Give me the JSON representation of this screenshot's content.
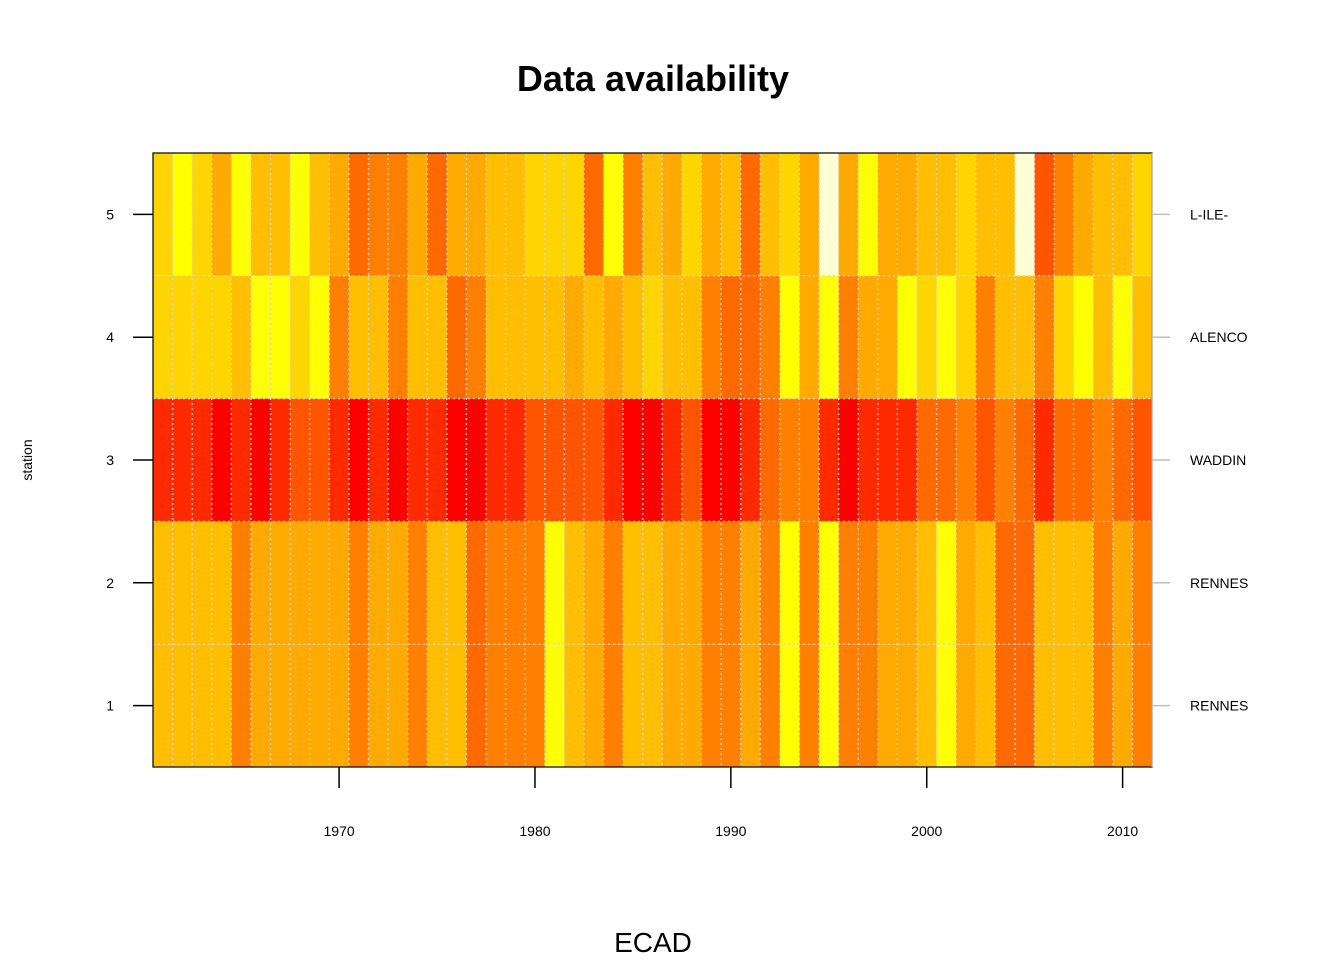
{
  "chart_data": {
    "type": "heatmap",
    "title": "Data availability",
    "xlabel": "ECAD",
    "ylabel": "station",
    "x_start_year": 1961,
    "x_end_year": 2011,
    "xlim": [
      1960.5,
      2011.5
    ],
    "ylim": [
      0.5,
      5.5
    ],
    "x_ticks": [
      1970,
      1980,
      1990,
      2000,
      2010
    ],
    "y_ticks": [
      1,
      2,
      3,
      4,
      5
    ],
    "station_labels": [
      "RENNES",
      "RENNES",
      "WADDIN",
      "ALENCO",
      "L-ILE-"
    ],
    "grid": true,
    "color_scale": "heat (red = low availability, yellow/white = high availability)",
    "palette": [
      "#FF0000",
      "#FF2A00",
      "#FF5500",
      "#FF6A00",
      "#FF8000",
      "#FFAA00",
      "#FFBF00",
      "#FFD500",
      "#FFFF00",
      "#FFFFD5"
    ],
    "rows": [
      {
        "station": 1,
        "levels": [
          6,
          6,
          6,
          6,
          4,
          5,
          5,
          5,
          5,
          5,
          4,
          5,
          5,
          4,
          6,
          6,
          3,
          4,
          4,
          4,
          8,
          6,
          5,
          4,
          6,
          6,
          5,
          5,
          4,
          4,
          5,
          4,
          8,
          4,
          8,
          4,
          4,
          5,
          5,
          6,
          8,
          5,
          6,
          3,
          3,
          6,
          6,
          6,
          4,
          5,
          4
        ]
      },
      {
        "station": 2,
        "levels": [
          6,
          6,
          6,
          6,
          4,
          5,
          5,
          5,
          5,
          5,
          4,
          5,
          5,
          4,
          6,
          6,
          3,
          4,
          4,
          4,
          8,
          6,
          5,
          4,
          6,
          6,
          5,
          5,
          4,
          4,
          5,
          4,
          8,
          4,
          8,
          4,
          4,
          5,
          5,
          6,
          8,
          5,
          6,
          3,
          3,
          6,
          6,
          6,
          4,
          5,
          4
        ]
      },
      {
        "station": 3,
        "levels": [
          1,
          1,
          1,
          0,
          1,
          0,
          1,
          2,
          2,
          1,
          0,
          1,
          0,
          1,
          1,
          0,
          0,
          1,
          1,
          2,
          2,
          2,
          2,
          1,
          0,
          0,
          1,
          2,
          0,
          0,
          1,
          3,
          4,
          4,
          1,
          0,
          1,
          1,
          1,
          3,
          3,
          4,
          2,
          4,
          3,
          1,
          3,
          3,
          4,
          3,
          2
        ]
      },
      {
        "station": 4,
        "levels": [
          7,
          7,
          7,
          7,
          6,
          8,
          8,
          7,
          8,
          4,
          6,
          6,
          4,
          6,
          6,
          3,
          4,
          6,
          6,
          6,
          6,
          5,
          6,
          5,
          6,
          7,
          6,
          6,
          4,
          3,
          3,
          4,
          8,
          5,
          8,
          4,
          5,
          5,
          8,
          7,
          8,
          7,
          4,
          6,
          6,
          4,
          7,
          8,
          6,
          8,
          6
        ]
      },
      {
        "station": 5,
        "levels": [
          7,
          8,
          7,
          5,
          8,
          6,
          6,
          8,
          6,
          5,
          3,
          4,
          4,
          5,
          3,
          5,
          5,
          6,
          6,
          7,
          7,
          7,
          3,
          8,
          4,
          6,
          5,
          7,
          5,
          6,
          3,
          6,
          7,
          5,
          9,
          5,
          8,
          5,
          5,
          6,
          6,
          7,
          6,
          6,
          9,
          2,
          4,
          5,
          6,
          6,
          7
        ]
      }
    ]
  }
}
